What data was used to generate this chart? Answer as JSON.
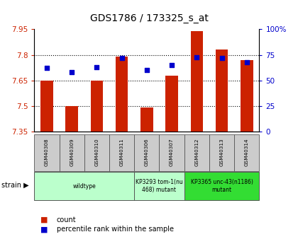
{
  "title": "GDS1786 / 173325_s_at",
  "samples": [
    "GSM40308",
    "GSM40309",
    "GSM40310",
    "GSM40311",
    "GSM40306",
    "GSM40307",
    "GSM40312",
    "GSM40313",
    "GSM40314"
  ],
  "count_values": [
    7.65,
    7.5,
    7.65,
    7.79,
    7.49,
    7.68,
    7.94,
    7.83,
    7.77
  ],
  "percentile_values": [
    62,
    58,
    63,
    72,
    60,
    65,
    73,
    72,
    68
  ],
  "ylim_left": [
    7.35,
    7.95
  ],
  "ylim_right": [
    0,
    100
  ],
  "yticks_left": [
    7.35,
    7.5,
    7.65,
    7.8,
    7.95
  ],
  "ytick_labels_left": [
    "7.35",
    "7.5",
    "7.65",
    "7.8",
    "7.95"
  ],
  "yticks_right": [
    0,
    25,
    50,
    75,
    100
  ],
  "ytick_labels_right": [
    "0",
    "25",
    "50",
    "75",
    "100%"
  ],
  "bar_color": "#cc2200",
  "dot_color": "#0000cc",
  "grid_color": "#000000",
  "strain_groups": [
    {
      "label": "wildtype",
      "start": 0,
      "end": 4,
      "color": "#ccffcc"
    },
    {
      "label": "KP3293 tom-1(nu\n468) mutant",
      "start": 4,
      "end": 6,
      "color": "#ccffcc"
    },
    {
      "label": "KP3365 unc-43(n1186)\nmutant",
      "start": 6,
      "end": 9,
      "color": "#44ee44"
    }
  ],
  "legend_items": [
    {
      "label": "count",
      "color": "#cc2200"
    },
    {
      "label": "percentile rank within the sample",
      "color": "#0000cc"
    }
  ],
  "tick_label_color_left": "#cc2200",
  "tick_label_color_right": "#0000cc",
  "bar_width": 0.5,
  "base_value": 7.35
}
